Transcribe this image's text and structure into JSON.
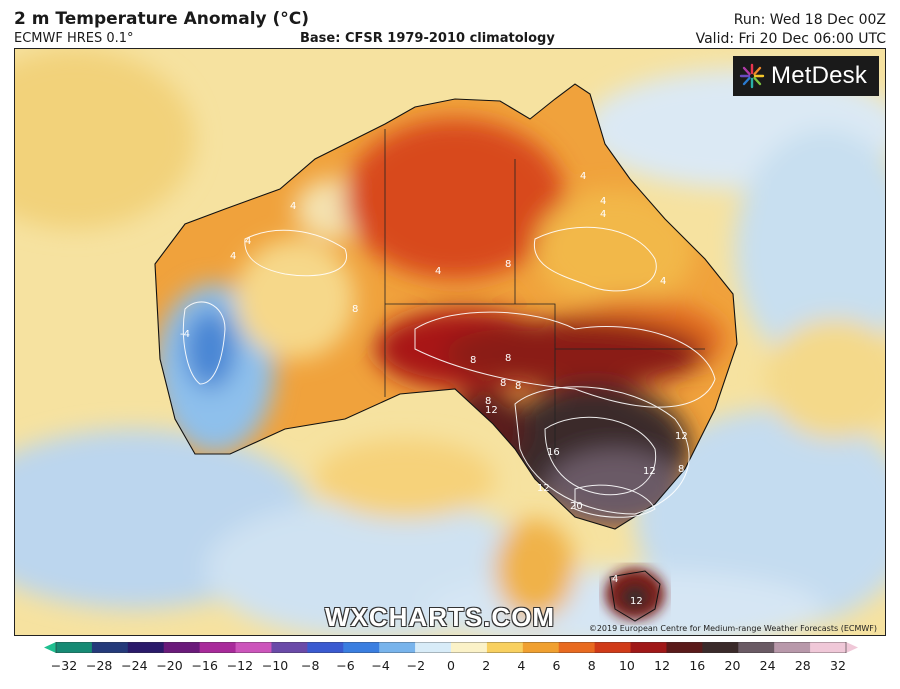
{
  "header": {
    "title": "2 m Temperature Anomaly (°C)",
    "model": "ECMWF HRES 0.1°",
    "base": "Base: CFSR 1979-2010 climatology",
    "run": "Run: Wed 18 Dec 00Z",
    "valid": "Valid: Fri 20 Dec 06:00 UTC"
  },
  "branding": {
    "logo": "MetDesk",
    "watermark": "WXCHARTS.COM",
    "copyright": "©2019 European Centre for Medium-range Weather Forecasts (ECMWF)"
  },
  "map": {
    "region": "Australia",
    "contour_labels": [
      "4",
      "4",
      "4",
      "4",
      "4",
      "4",
      "4",
      "4",
      "8",
      "8",
      "8",
      "8",
      "8",
      "8",
      "8",
      "8",
      "12",
      "12",
      "12",
      "12",
      "12",
      "16",
      "20",
      "-4",
      "4"
    ]
  },
  "colorbar": {
    "ticks": [
      "−32",
      "−28",
      "−24",
      "−20",
      "−16",
      "−12",
      "−10",
      "−8",
      "−6",
      "−4",
      "−2",
      "0",
      "2",
      "4",
      "6",
      "8",
      "10",
      "12",
      "16",
      "20",
      "24",
      "28",
      "32"
    ],
    "colors": [
      "#1fbf90",
      "#168a74",
      "#243a7a",
      "#2a1a6a",
      "#6a1a7a",
      "#a82a9a",
      "#cc55bb",
      "#6a4aa8",
      "#3a5ad0",
      "#3a7ee0",
      "#78b4ec",
      "#d8ecf8",
      "#fbf2c8",
      "#f8d060",
      "#f0a030",
      "#e86a20",
      "#d03a18",
      "#a01818",
      "#5a1a1a",
      "#3a2a2a",
      "#6a5a64",
      "#b898aa",
      "#f0c8d8"
    ]
  }
}
